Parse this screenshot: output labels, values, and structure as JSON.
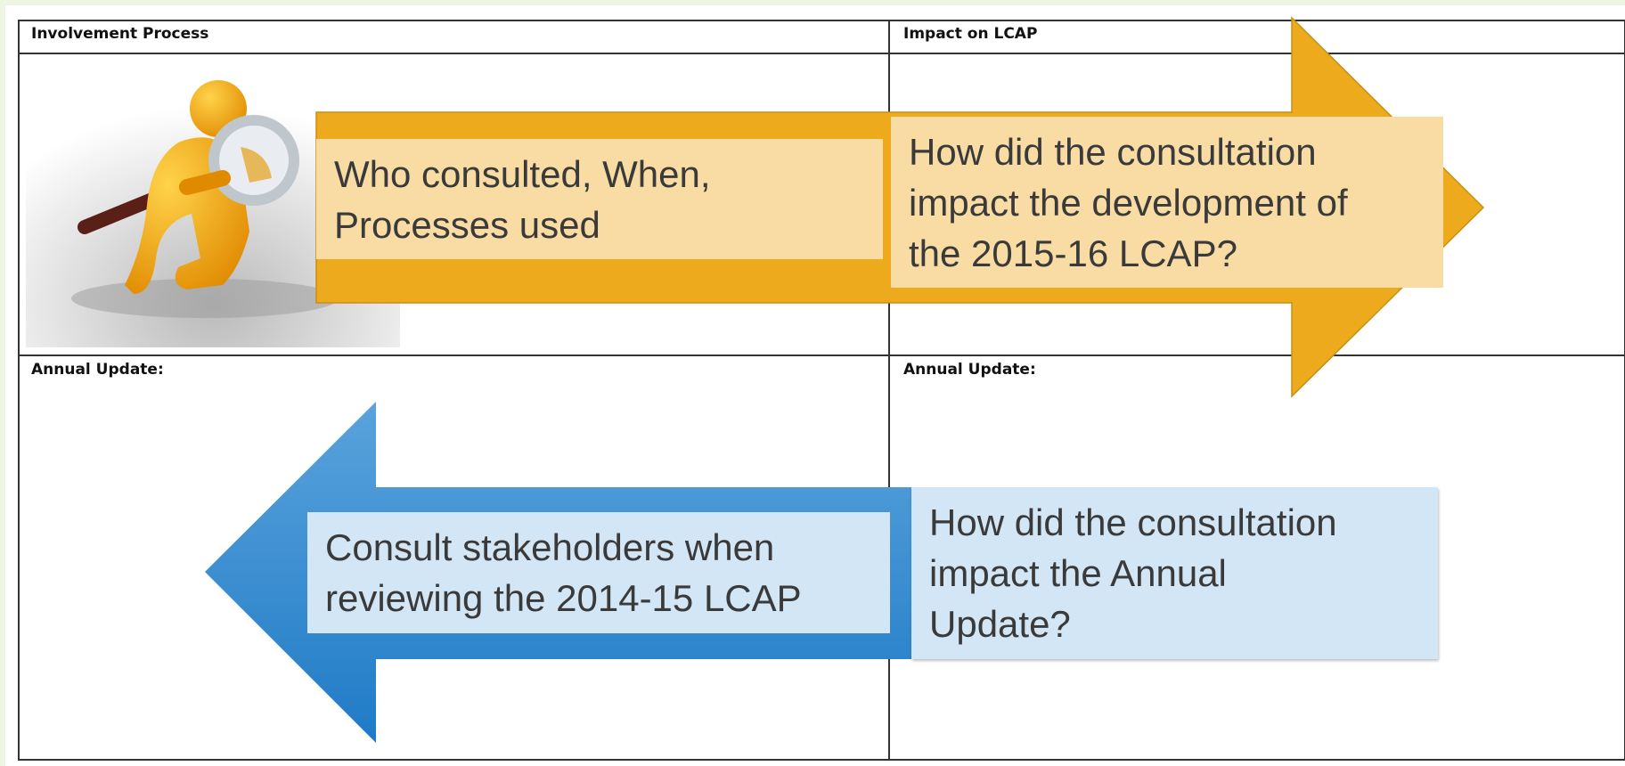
{
  "table": {
    "headers": [
      "Involvement Process",
      "Impact on LCAP"
    ],
    "rows": [
      [
        "Annual Update:",
        "Annual Update:"
      ]
    ]
  },
  "arrows": [
    {
      "left_lines": [
        "Who consulted, When,",
        "Processes used"
      ],
      "right_lines": [
        "How did the consultation",
        "impact the development of",
        "the 2015-16 LCAP?"
      ]
    },
    {
      "left_lines": [
        "Consult stakeholders when",
        "reviewing the 2014-15 LCAP"
      ],
      "right_lines": [
        "How did the consultation",
        "impact the Annual",
        "Update?"
      ]
    }
  ]
}
